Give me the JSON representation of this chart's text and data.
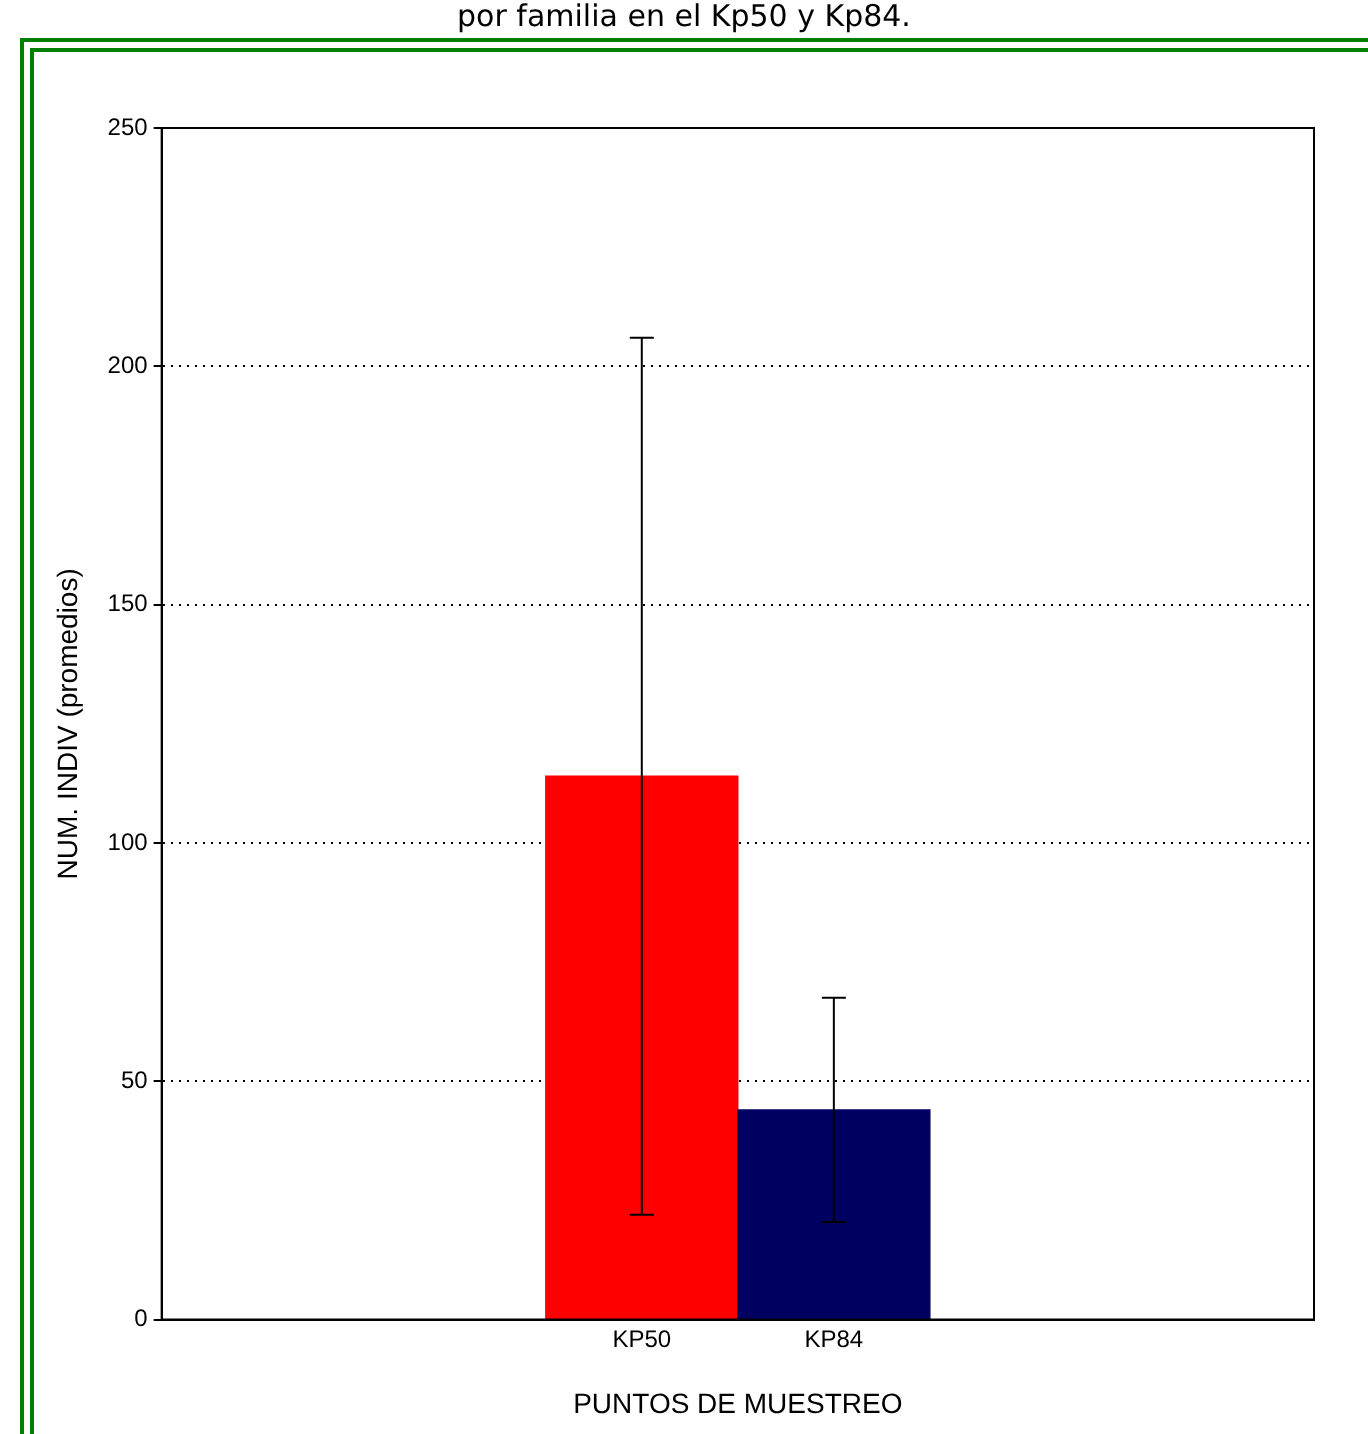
{
  "chart_data": {
    "type": "bar",
    "title": "por familia en el Kp50 y Kp84.",
    "xlabel": "PUNTOS DE MUESTREO",
    "ylabel": "NUM. INDIV (promedios)",
    "categories": [
      "KP50",
      "KP84"
    ],
    "values": [
      114,
      44
    ],
    "colors": [
      "#ff0000",
      "#000060"
    ],
    "errors": [
      92,
      23.5
    ],
    "ylim": [
      0,
      250
    ],
    "yticks": [
      0,
      50,
      100,
      150,
      200,
      250
    ],
    "grid": "y",
    "legend": false
  }
}
